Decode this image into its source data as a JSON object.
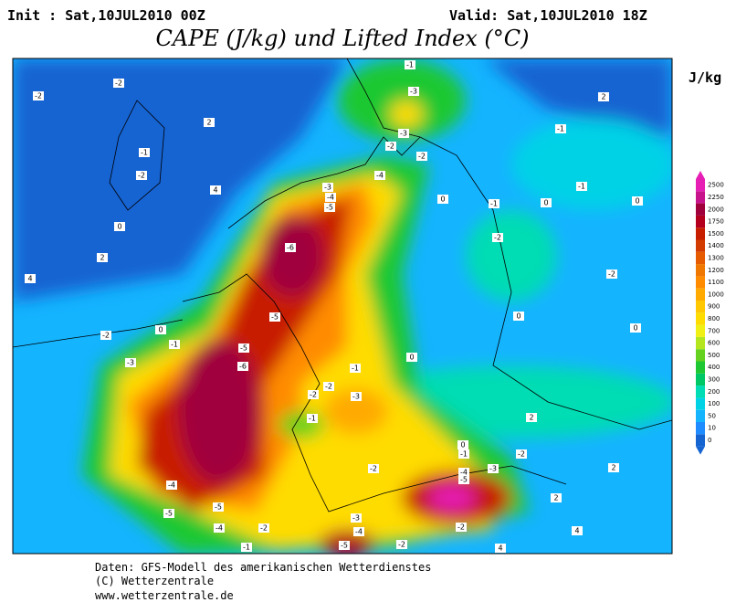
{
  "header": {
    "init": "Init : Sat,10JUL2010 00Z",
    "valid": "Valid: Sat,10JUL2010 18Z",
    "title": "CAPE (J/kg) und Lifted Index (°C)"
  },
  "unit": "J/kg",
  "colorbar": {
    "ticks": [
      0,
      10,
      50,
      100,
      200,
      300,
      400,
      500,
      600,
      700,
      800,
      900,
      1000,
      1100,
      1200,
      1300,
      1400,
      1500,
      1750,
      2000,
      2250,
      2500
    ],
    "colors": [
      "#1464d2",
      "#1e8cff",
      "#14b4ff",
      "#00d2e6",
      "#00dcb4",
      "#00c864",
      "#1ec832",
      "#64d21e",
      "#b4e61e",
      "#f0f014",
      "#ffdc00",
      "#ffc800",
      "#ffaa00",
      "#ff8c00",
      "#f07800",
      "#e65a00",
      "#d23c00",
      "#c81e00",
      "#b4001e",
      "#a0003c",
      "#c8148c",
      "#e61eb4"
    ]
  },
  "contour_labels": [
    "-2",
    "-2",
    "2",
    "-1",
    "-2",
    "4",
    "0",
    "2",
    "4",
    "0",
    "-2",
    "-1",
    "-3",
    "-5",
    "-6",
    "-5",
    "-6",
    "-3",
    "-4",
    "-5",
    "-4",
    "-2",
    "-2",
    "-3",
    "-1",
    "-3",
    "0",
    "-1",
    "-2",
    "-1",
    "-1",
    "0",
    "2",
    "0",
    "-2",
    "0",
    "0",
    "0",
    "-1",
    "-2",
    "-2",
    "-3",
    "-1",
    "2",
    "0",
    "-1",
    "-2",
    "-3",
    "-4",
    "-5",
    "-2",
    "2",
    "2",
    "-4",
    "-5",
    "-5",
    "-4",
    "-2",
    "-3",
    "-4",
    "-5",
    "-2",
    "-1",
    "4",
    "4",
    "-2"
  ],
  "footer": [
    "Daten: GFS-Modell des amerikanischen Wetterdienstes",
    "(C) Wetterzentrale",
    "www.wetterzentrale.de"
  ]
}
